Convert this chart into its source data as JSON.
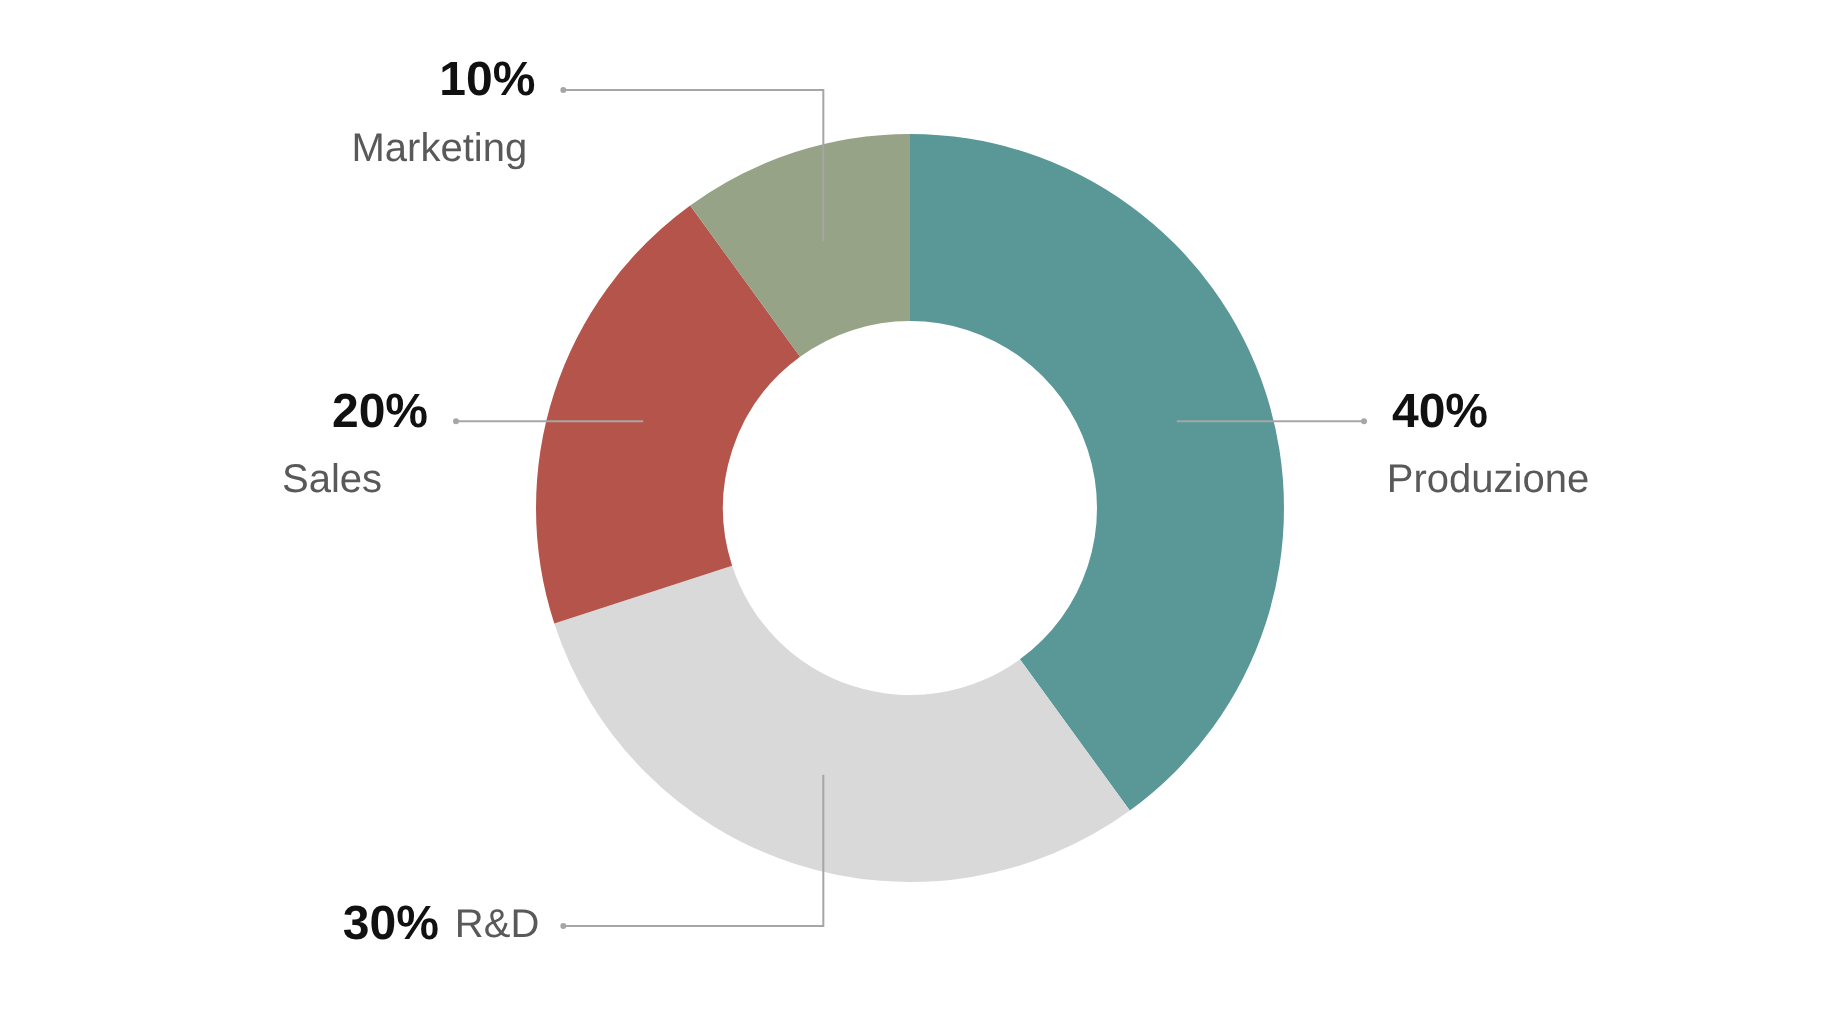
{
  "chart_data": {
    "type": "donut",
    "categories": [
      "Produzione",
      "R&D",
      "Sales",
      "Marketing"
    ],
    "values": [
      40,
      30,
      20,
      10
    ],
    "colors": [
      "#5a9898",
      "#d9d9d9",
      "#b5544a",
      "#96a386"
    ],
    "value_labels": [
      "40%",
      "30%",
      "20%",
      "10%"
    ],
    "legend": false
  }
}
